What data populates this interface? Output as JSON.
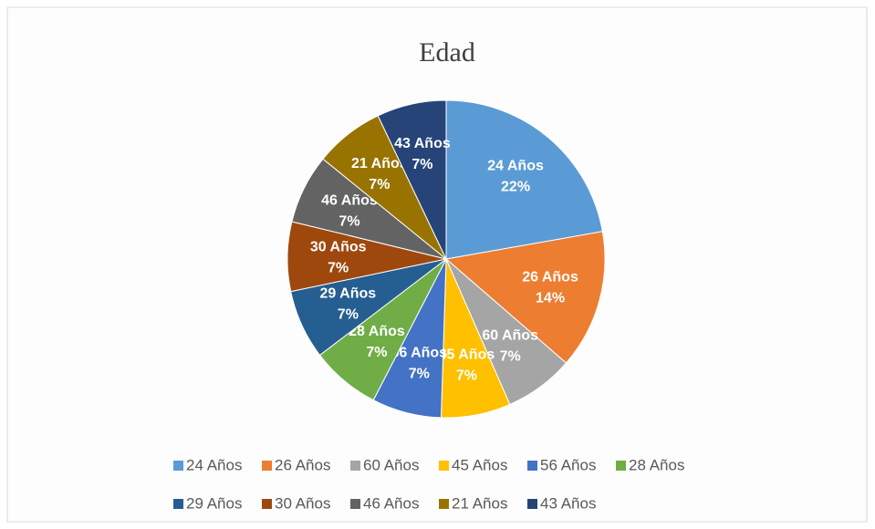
{
  "chart_data": {
    "type": "pie",
    "title": "Edad",
    "categories": [
      "24 Años",
      "26 Años",
      "60 Años",
      "45 Años",
      "56 Años",
      "28 Años",
      "29 Años",
      "30 Años",
      "46 Años",
      "21 Años",
      "43 Años"
    ],
    "values": [
      22,
      14,
      7,
      7,
      7,
      7,
      7,
      7,
      7,
      7,
      7
    ],
    "value_labels": [
      "22%",
      "14%",
      "7%",
      "7%",
      "7%",
      "7%",
      "7%",
      "7%",
      "7%",
      "7%",
      "7%"
    ],
    "colors": [
      "#5b9bd5",
      "#ed7d31",
      "#a5a5a5",
      "#ffc000",
      "#4472c4",
      "#70ad47",
      "#255e91",
      "#9e480e",
      "#636363",
      "#997300",
      "#264478"
    ],
    "legend": "bottom"
  }
}
